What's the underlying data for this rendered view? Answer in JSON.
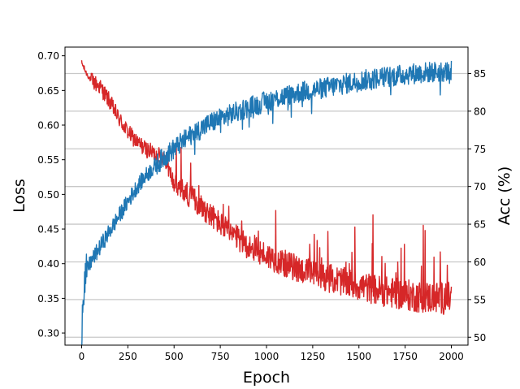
{
  "chart_data": {
    "type": "line",
    "xlabel": "Epoch",
    "ylabel_left": "Loss",
    "ylabel_right": "Acc (%)",
    "xlim": [
      -90,
      2090
    ],
    "ylim_left": [
      0.2825,
      0.7125
    ],
    "ylim_right": [
      48.95,
      88.5
    ],
    "x_ticks": [
      0,
      250,
      500,
      750,
      1000,
      1250,
      1500,
      1750,
      2000
    ],
    "y_ticks_left": [
      0.3,
      0.35,
      0.4,
      0.45,
      0.5,
      0.55,
      0.6,
      0.65,
      0.7
    ],
    "y_ticks_right": [
      50,
      55,
      60,
      65,
      70,
      75,
      80,
      85
    ],
    "grid": "horizontal-right-axis",
    "noisy_traces": true,
    "series": [
      {
        "axis": "left",
        "color": "#d62728",
        "x": [
          0,
          25,
          50,
          100,
          150,
          200,
          250,
          300,
          350,
          400,
          450,
          500,
          550,
          600,
          700,
          800,
          900,
          1000,
          1100,
          1200,
          1300,
          1400,
          1500,
          1600,
          1700,
          1800,
          1900,
          2000
        ],
        "values": [
          0.69,
          0.675,
          0.665,
          0.655,
          0.635,
          0.61,
          0.59,
          0.575,
          0.565,
          0.558,
          0.553,
          0.515,
          0.505,
          0.495,
          0.47,
          0.445,
          0.425,
          0.412,
          0.4,
          0.39,
          0.382,
          0.375,
          0.368,
          0.362,
          0.357,
          0.353,
          0.351,
          0.35
        ]
      },
      {
        "axis": "right",
        "color": "#1f77b4",
        "x": [
          0,
          5,
          15,
          30,
          50,
          75,
          100,
          150,
          200,
          250,
          300,
          350,
          400,
          450,
          500,
          550,
          600,
          700,
          800,
          900,
          1000,
          1100,
          1200,
          1300,
          1400,
          1500,
          1600,
          1700,
          1800,
          1900,
          2000
        ],
        "values": [
          50.5,
          54.5,
          57.5,
          59.0,
          60.0,
          61.0,
          62.0,
          64.0,
          66.0,
          68.0,
          70.0,
          71.5,
          72.8,
          74.0,
          75.0,
          76.0,
          77.0,
          78.5,
          79.5,
          80.5,
          81.3,
          82.0,
          82.6,
          83.0,
          83.5,
          84.0,
          84.4,
          84.7,
          85.0,
          85.2,
          85.3
        ]
      }
    ]
  }
}
